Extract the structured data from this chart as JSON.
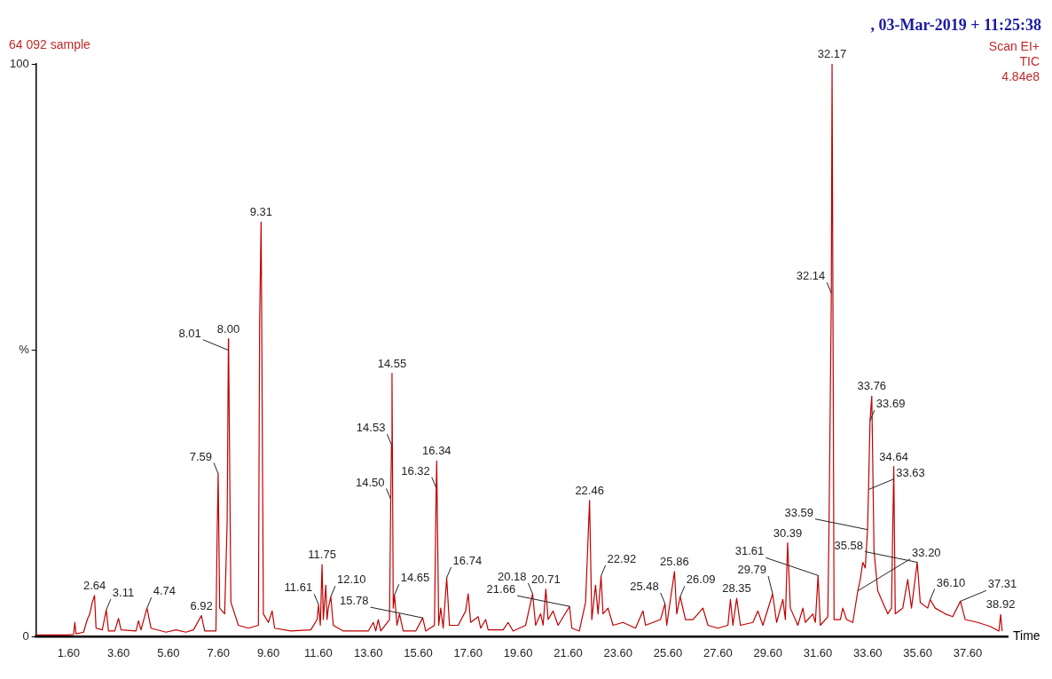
{
  "chart_data": {
    "type": "line",
    "title": "64 092 sample",
    "subtitle": ", 03-Mar-2019 + 11:25:38",
    "xlabel": "Time",
    "color": "#c00000",
    "x": [
      0.3,
      1.5,
      1.8,
      1.85,
      1.9,
      2.2,
      2.35,
      2.45,
      2.55,
      2.64,
      2.7,
      2.95,
      3.11,
      3.2,
      3.45,
      3.6,
      3.7,
      4.3,
      4.4,
      4.5,
      4.74,
      4.9,
      5.5,
      5.9,
      6.3,
      6.6,
      6.92,
      7.05,
      7.5,
      7.55,
      7.59,
      7.65,
      7.85,
      7.95,
      8.0,
      8.01,
      8.1,
      8.4,
      8.8,
      9.2,
      9.25,
      9.31,
      9.4,
      9.6,
      9.75,
      9.85,
      10.5,
      11.3,
      11.55,
      11.61,
      11.68,
      11.75,
      11.8,
      11.9,
      11.95,
      12.0,
      12.1,
      12.2,
      12.6,
      13.6,
      13.8,
      13.9,
      14.0,
      14.1,
      14.45,
      14.5,
      14.53,
      14.55,
      14.6,
      14.65,
      14.75,
      14.85,
      15.0,
      15.5,
      15.78,
      15.9,
      16.25,
      16.32,
      16.34,
      16.42,
      16.5,
      16.6,
      16.74,
      16.85,
      17.2,
      17.5,
      17.6,
      17.7,
      18.0,
      18.1,
      18.3,
      18.4,
      19.0,
      19.2,
      19.4,
      19.9,
      20.18,
      20.3,
      20.5,
      20.6,
      20.71,
      20.8,
      21.0,
      21.2,
      21.66,
      21.75,
      22.05,
      22.3,
      22.46,
      22.55,
      22.7,
      22.8,
      22.92,
      23.0,
      23.2,
      23.4,
      23.8,
      24.3,
      24.6,
      24.7,
      25.3,
      25.48,
      25.55,
      25.86,
      25.95,
      26.09,
      26.3,
      26.6,
      27.0,
      27.2,
      27.6,
      28.0,
      28.1,
      28.2,
      28.35,
      28.5,
      29.0,
      29.2,
      29.4,
      29.79,
      29.95,
      30.2,
      30.3,
      30.39,
      30.5,
      30.8,
      31.0,
      31.1,
      31.4,
      31.5,
      31.61,
      31.7,
      32.0,
      32.05,
      32.14,
      32.17,
      32.25,
      32.5,
      32.6,
      32.75,
      33.0,
      33.2,
      33.3,
      33.4,
      33.5,
      33.59,
      33.63,
      33.69,
      33.76,
      33.85,
      34.0,
      34.2,
      34.4,
      34.55,
      34.64,
      34.7,
      35.0,
      35.2,
      35.35,
      35.58,
      35.7,
      36.0,
      36.1,
      36.3,
      36.7,
      37.0,
      37.31,
      37.5,
      38.0,
      38.5,
      38.85,
      38.92,
      38.98
    ],
    "values": [
      0.3,
      0.3,
      0.4,
      2.5,
      0.5,
      0.8,
      3,
      4,
      6,
      7.2,
      1.5,
      1.2,
      4.7,
      1,
      1,
      3.2,
      1.2,
      1,
      2.8,
      1.2,
      5,
      1.5,
      0.8,
      1.2,
      0.8,
      1.2,
      3.7,
      1,
      1,
      18,
      28.5,
      5,
      4,
      20,
      52,
      50,
      6,
      2,
      1.5,
      2,
      55,
      72.4,
      4,
      2.5,
      4.5,
      1.5,
      1,
      1.2,
      3,
      5.6,
      2,
      12.6,
      3,
      9,
      3,
      5,
      7,
      2,
      1,
      1,
      2.5,
      1,
      3,
      1,
      3,
      24,
      33.5,
      46,
      5,
      7.3,
      2,
      4,
      1,
      1,
      3.3,
      1,
      2,
      26,
      30.7,
      2,
      5,
      1.5,
      10.3,
      2,
      2,
      4.5,
      7.5,
      2.5,
      3.5,
      1.5,
      3,
      1.2,
      1.2,
      2.5,
      1,
      2,
      7.5,
      2,
      4,
      2,
      8.3,
      3,
      4.5,
      2,
      5.3,
      1.5,
      1,
      6,
      23.8,
      3,
      9,
      4,
      10.6,
      4,
      5,
      2,
      2.5,
      1.5,
      4.5,
      2,
      3,
      5.8,
      2,
      11.4,
      4,
      7,
      3,
      3,
      5,
      2,
      1.5,
      2,
      6.5,
      2,
      6.7,
      2,
      2.5,
      4.5,
      2,
      7.5,
      2.5,
      6.5,
      3,
      16.4,
      5,
      2,
      5,
      2.5,
      4,
      2.5,
      10.7,
      2,
      3.5,
      20,
      60,
      100,
      3,
      3,
      5,
      3,
      2.5,
      8,
      10,
      13,
      12,
      18.7,
      25.7,
      37.7,
      42,
      15,
      8,
      6,
      4,
      5,
      29.7,
      4,
      5,
      10,
      5,
      13,
      6,
      5,
      6.5,
      5,
      4,
      3.5,
      6.2,
      3,
      2.5,
      1.8,
      1,
      3.9,
      1
    ],
    "xlim": [
      0.3,
      39.2
    ],
    "ylim": [
      0,
      100
    ],
    "xticks": [
      {
        "value": 1.6,
        "label": "1.60"
      },
      {
        "value": 3.6,
        "label": "3.60"
      },
      {
        "value": 5.6,
        "label": "5.60"
      },
      {
        "value": 7.6,
        "label": "7.60"
      },
      {
        "value": 9.6,
        "label": "9.60"
      },
      {
        "value": 11.6,
        "label": "11.60"
      },
      {
        "value": 13.6,
        "label": "13.60"
      },
      {
        "value": 15.6,
        "label": "15.60"
      },
      {
        "value": 17.6,
        "label": "17.60"
      },
      {
        "value": 19.6,
        "label": "19.60"
      },
      {
        "value": 21.6,
        "label": "21.60"
      },
      {
        "value": 23.6,
        "label": "23.60"
      },
      {
        "value": 25.6,
        "label": "25.60"
      },
      {
        "value": 27.6,
        "label": "27.60"
      },
      {
        "value": 29.6,
        "label": "29.60"
      },
      {
        "value": 31.6,
        "label": "31.60"
      },
      {
        "value": 33.6,
        "label": "33.60"
      },
      {
        "value": 35.6,
        "label": "35.60"
      },
      {
        "value": 37.6,
        "label": "37.60"
      }
    ],
    "yticks": [
      0,
      {
        "value": 50,
        "label": "%"
      },
      100
    ],
    "grid": false,
    "legend": false,
    "marker": "none",
    "line_style": "solid",
    "annotations": [
      "Scan EI+",
      "TIC",
      "4.84e8",
      {
        "text": "2.64",
        "x": 2.64,
        "y": 7.2
      },
      {
        "text": "3.11",
        "x": 3.11,
        "y": 4.7
      },
      {
        "text": "4.74",
        "x": 4.74,
        "y": 5
      },
      {
        "text": "6.92",
        "x": 6.92,
        "y": 3.7
      },
      {
        "text": "7.59",
        "x": 7.59,
        "y": 28.5
      },
      {
        "text": "8.00",
        "x": 8.0,
        "y": 52
      },
      {
        "text": "8.01",
        "x": 8.01,
        "y": 50
      },
      {
        "text": "9.31",
        "x": 9.31,
        "y": 72.4
      },
      {
        "text": "11.61",
        "x": 11.61,
        "y": 5.6
      },
      {
        "text": "11.75",
        "x": 11.75,
        "y": 12.6
      },
      {
        "text": "12.10",
        "x": 12.1,
        "y": 7
      },
      {
        "text": "14.50",
        "x": 14.5,
        "y": 24
      },
      {
        "text": "14.53",
        "x": 14.53,
        "y": 33.5
      },
      {
        "text": "14.55",
        "x": 14.55,
        "y": 46
      },
      {
        "text": "14.65",
        "x": 14.65,
        "y": 7.3
      },
      {
        "text": "15.78",
        "x": 15.78,
        "y": 3.3
      },
      {
        "text": "16.32",
        "x": 16.32,
        "y": 26
      },
      {
        "text": "16.34",
        "x": 16.34,
        "y": 30.7
      },
      {
        "text": "16.74",
        "x": 16.74,
        "y": 10.3
      },
      {
        "text": "20.18",
        "x": 20.18,
        "y": 7.5
      },
      {
        "text": "20.71",
        "x": 20.71,
        "y": 8.3
      },
      {
        "text": "21.66",
        "x": 21.66,
        "y": 5.3
      },
      {
        "text": "22.46",
        "x": 22.46,
        "y": 23.8
      },
      {
        "text": "22.92",
        "x": 22.92,
        "y": 10.6
      },
      {
        "text": "25.48",
        "x": 25.48,
        "y": 5.8
      },
      {
        "text": "25.86",
        "x": 25.86,
        "y": 11.4
      },
      {
        "text": "26.09",
        "x": 26.09,
        "y": 7
      },
      {
        "text": "28.35",
        "x": 28.35,
        "y": 6.7
      },
      {
        "text": "29.79",
        "x": 29.79,
        "y": 7.5
      },
      {
        "text": "30.39",
        "x": 30.39,
        "y": 16.4
      },
      {
        "text": "31.61",
        "x": 31.61,
        "y": 10.7
      },
      {
        "text": "32.14",
        "x": 32.14,
        "y": 60
      },
      {
        "text": "32.17",
        "x": 32.17,
        "y": 100
      },
      {
        "text": "33.20",
        "x": 33.2,
        "y": 8
      },
      {
        "text": "33.59",
        "x": 33.59,
        "y": 18.7
      },
      {
        "text": "33.63",
        "x": 33.63,
        "y": 25.7
      },
      {
        "text": "33.69",
        "x": 33.69,
        "y": 37.7
      },
      {
        "text": "33.76",
        "x": 33.76,
        "y": 42
      },
      {
        "text": "34.64",
        "x": 34.64,
        "y": 29.7
      },
      {
        "text": "35.58",
        "x": 35.58,
        "y": 13
      },
      {
        "text": "36.10",
        "x": 36.1,
        "y": 6.5
      },
      {
        "text": "37.31",
        "x": 37.31,
        "y": 6.2
      },
      {
        "text": "38.92",
        "x": 38.92,
        "y": 3.9
      }
    ]
  }
}
